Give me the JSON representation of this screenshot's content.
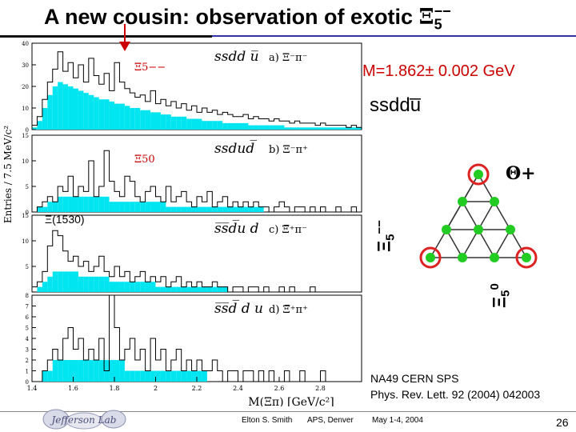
{
  "slide": {
    "title_prefix": "A new cousin: observation of exotic ",
    "title_xi": "Ξ",
    "title_sub": "5",
    "title_sup": "−−",
    "mass_label": "M=1.862± 0.002 GeV",
    "quark_content": "ssddu̅",
    "reference_line1": "NA49 CERN SPS",
    "reference_line2": "Phys. Rev. Lett. 92 (2004) 042003",
    "xi1530_label": "Ξ(1530)",
    "footer": {
      "author": "Elton S. Smith",
      "event": "APS, Denver",
      "date": "May 1-4, 2004",
      "page": "26"
    },
    "logo_text": "Jefferson Lab",
    "multiplet": {
      "top_right_label": "Θ+",
      "left_label_xi": "Ξ",
      "left_label_sub": "5",
      "left_label_sup": "−−",
      "right_label_xi": "Ξ",
      "right_label_sub": "5",
      "right_label_sup": "0",
      "node_color": "#22cc22",
      "ring_color": "#dd2222"
    }
  },
  "chart_data": {
    "type": "bar",
    "xlabel": "M(Ξπ) [GeV/c²]",
    "ylabel": "Entries / 7.5 MeV/c²",
    "xlim": [
      1.4,
      3.0
    ],
    "x_ticks": [
      "1.4",
      "1.6",
      "1.8",
      "2",
      "2.2",
      "2.4",
      "2.6",
      "2.8"
    ],
    "fill_color": "#00e5f0",
    "panels": [
      {
        "id": "a",
        "channel_label": "a) Ξ⁻π⁻",
        "quark_label": "ssdd u̅",
        "state_label": "Ξ5−−",
        "ylim": [
          0,
          40
        ],
        "y_ticks": [
          "0",
          "10",
          "20",
          "30",
          "40"
        ],
        "data": [
          2,
          6,
          14,
          22,
          28,
          36,
          27,
          31,
          24,
          30,
          22,
          33,
          25,
          21,
          26,
          18,
          31,
          22,
          19,
          17,
          15,
          16,
          13,
          18,
          12,
          14,
          11,
          13,
          10,
          12,
          9,
          11,
          8,
          10,
          8,
          9,
          7,
          8,
          7,
          6,
          6,
          7,
          5,
          6,
          5,
          5,
          4,
          5,
          4,
          4,
          3,
          4,
          3,
          3,
          3,
          2,
          3,
          2,
          2,
          2,
          2,
          1,
          2,
          1
        ],
        "background": [
          1,
          4,
          10,
          16,
          20,
          22,
          21,
          20,
          19,
          18,
          17,
          16,
          15,
          14,
          14,
          13,
          12,
          12,
          11,
          10,
          10,
          9,
          9,
          8,
          8,
          7,
          7,
          6,
          6,
          6,
          5,
          5,
          5,
          4,
          4,
          4,
          4,
          3,
          3,
          3,
          3,
          3,
          2,
          2,
          2,
          2,
          2,
          2,
          2,
          1,
          1,
          1,
          1,
          1,
          1,
          1,
          1,
          1,
          1,
          1,
          1,
          1,
          1,
          1
        ]
      },
      {
        "id": "b",
        "channel_label": "b) Ξ⁻π⁺",
        "quark_label": "ssdud̅",
        "state_label": "Ξ50",
        "ylim": [
          0,
          15
        ],
        "y_ticks": [
          "0",
          "5",
          "10",
          "15"
        ],
        "data": [
          0,
          1,
          2,
          3,
          2,
          5,
          4,
          7,
          3,
          5,
          4,
          10,
          3,
          5,
          12,
          6,
          4,
          3,
          7,
          6,
          3,
          2,
          4,
          5,
          3,
          2,
          5,
          2,
          3,
          4,
          2,
          1,
          3,
          2,
          4,
          1,
          2,
          3,
          1,
          2,
          1,
          2,
          1,
          2,
          1,
          1,
          0,
          1,
          2,
          1,
          0,
          1,
          1,
          0,
          1,
          0,
          1,
          0,
          0,
          1,
          0,
          0,
          1,
          0
        ],
        "background": [
          0,
          1,
          1,
          2,
          2,
          3,
          3,
          3,
          3,
          3,
          3,
          3,
          3,
          3,
          3,
          2,
          2,
          2,
          2,
          2,
          2,
          2,
          2,
          2,
          2,
          2,
          1,
          1,
          1,
          1,
          1,
          1,
          1,
          1,
          1,
          1,
          1,
          1,
          1,
          1,
          1,
          1,
          1,
          1,
          1,
          0,
          0,
          0,
          0,
          0,
          0,
          0,
          0,
          0,
          0,
          0,
          0,
          0,
          0,
          0,
          0,
          0,
          0,
          0
        ]
      },
      {
        "id": "c",
        "channel_label": "c) Ξ̅⁺π⁻",
        "quark_label": "s̅s̅d̅u d",
        "state_label": "",
        "ylim": [
          0,
          15
        ],
        "y_ticks": [
          "5",
          "10",
          "15"
        ],
        "data": [
          1,
          2,
          4,
          9,
          12,
          11,
          8,
          6,
          7,
          5,
          6,
          4,
          5,
          7,
          4,
          3,
          5,
          3,
          4,
          2,
          3,
          4,
          2,
          3,
          2,
          3,
          1,
          2,
          3,
          1,
          2,
          1,
          2,
          1,
          1,
          2,
          1,
          1,
          0,
          1,
          1,
          0,
          1,
          1,
          0,
          1,
          0,
          0,
          1,
          0,
          1,
          0,
          0,
          0,
          1,
          0,
          0,
          0,
          0,
          0,
          0,
          0,
          0,
          0
        ],
        "background": [
          0,
          1,
          2,
          3,
          4,
          4,
          4,
          4,
          4,
          3,
          3,
          3,
          3,
          3,
          3,
          2,
          2,
          2,
          2,
          2,
          2,
          2,
          2,
          2,
          1,
          1,
          1,
          1,
          1,
          1,
          1,
          1,
          1,
          1,
          1,
          1,
          1,
          1,
          0,
          0,
          0,
          0,
          0,
          0,
          0,
          0,
          0,
          0,
          0,
          0,
          0,
          0,
          0,
          0,
          0,
          0,
          0,
          0,
          0,
          0,
          0,
          0,
          0,
          0
        ]
      },
      {
        "id": "d",
        "channel_label": "d) Ξ̅⁺π⁺",
        "quark_label": "s̅s̅d̅ d u",
        "state_label": "",
        "ylim": [
          0,
          8
        ],
        "y_ticks": [
          "0",
          "1",
          "2",
          "3",
          "4",
          "5",
          "6",
          "7",
          "8"
        ],
        "data": [
          0,
          0,
          1,
          2,
          3,
          2,
          4,
          5,
          3,
          4,
          2,
          3,
          2,
          4,
          1,
          8,
          5,
          2,
          3,
          4,
          2,
          3,
          1,
          4,
          2,
          3,
          1,
          2,
          3,
          1,
          2,
          1,
          2,
          1,
          1,
          2,
          1,
          0,
          1,
          1,
          0,
          1,
          1,
          0,
          1,
          0,
          1,
          0,
          0,
          1,
          0,
          0,
          1,
          0,
          0,
          0,
          1,
          0,
          0,
          0,
          0,
          0,
          0,
          0
        ],
        "background": [
          0,
          0,
          1,
          1,
          2,
          2,
          2,
          2,
          2,
          2,
          2,
          2,
          2,
          2,
          2,
          2,
          2,
          2,
          1,
          1,
          1,
          1,
          1,
          1,
          1,
          1,
          1,
          1,
          1,
          1,
          1,
          1,
          1,
          1,
          0,
          0,
          0,
          0,
          0,
          0,
          0,
          0,
          0,
          0,
          0,
          0,
          0,
          0,
          0,
          0,
          0,
          0,
          0,
          0,
          0,
          0,
          0,
          0,
          0,
          0,
          0,
          0,
          0,
          0
        ]
      }
    ]
  }
}
